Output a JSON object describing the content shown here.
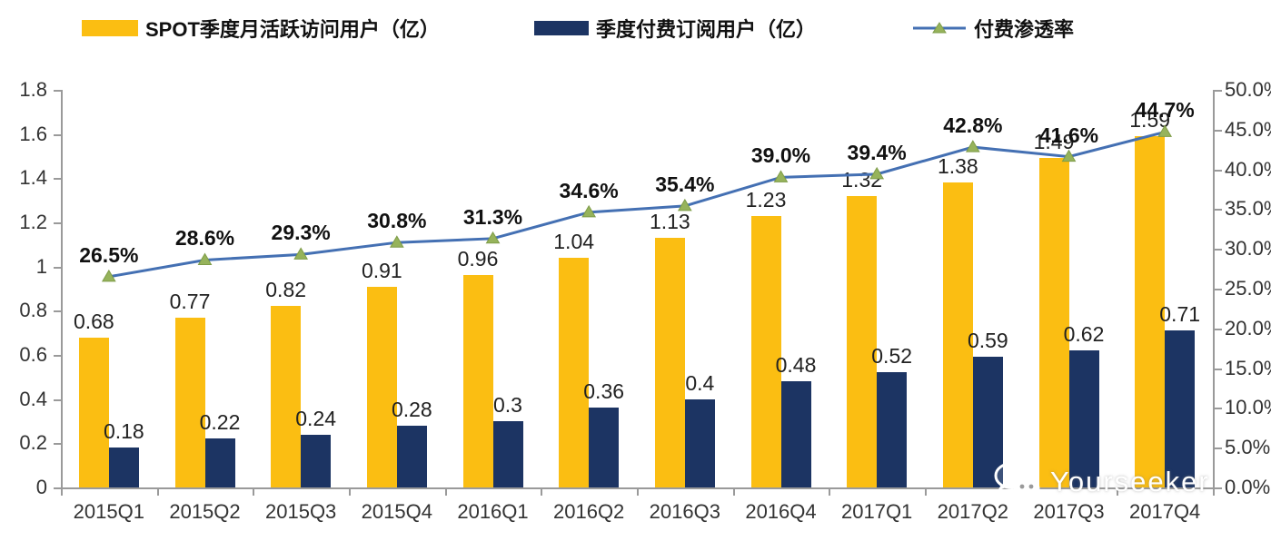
{
  "legend": [
    {
      "label": "SPOT季度月活跃访问用户（亿）",
      "type": "bar",
      "color": "#FBBE12"
    },
    {
      "label": "季度付费订阅用户（亿）",
      "type": "bar",
      "color": "#1C3463"
    },
    {
      "label": "付费渗透率",
      "type": "line",
      "color": "#4470B3",
      "marker_color": "#96B35B"
    }
  ],
  "chart_data": {
    "type": "bar",
    "subtype": "grouped bars with overlaid line (dual axis)",
    "categories": [
      "2015Q1",
      "2015Q2",
      "2015Q3",
      "2015Q4",
      "2016Q1",
      "2016Q2",
      "2016Q3",
      "2016Q4",
      "2017Q1",
      "2017Q2",
      "2017Q3",
      "2017Q4"
    ],
    "series": [
      {
        "name": "SPOT季度月活跃访问用户（亿）",
        "type": "bar",
        "axis": "left",
        "color": "#FBBE12",
        "values": [
          0.68,
          0.77,
          0.82,
          0.91,
          0.96,
          1.04,
          1.13,
          1.23,
          1.32,
          1.38,
          1.49,
          1.59
        ],
        "labels": [
          "0.68",
          "0.77",
          "0.82",
          "0.91",
          "0.96",
          "1.04",
          "1.13",
          "1.23",
          "1.32",
          "1.38",
          "1.49",
          "1.59"
        ]
      },
      {
        "name": "季度付费订阅用户（亿）",
        "type": "bar",
        "axis": "left",
        "color": "#1C3463",
        "values": [
          0.18,
          0.22,
          0.24,
          0.28,
          0.3,
          0.36,
          0.4,
          0.48,
          0.52,
          0.59,
          0.62,
          0.71
        ],
        "labels": [
          "0.18",
          "0.22",
          "0.24",
          "0.28",
          "0.3",
          "0.36",
          "0.4",
          "0.48",
          "0.52",
          "0.59",
          "0.62",
          "0.71"
        ]
      },
      {
        "name": "付费渗透率",
        "type": "line",
        "axis": "right",
        "color": "#4470B3",
        "marker": "triangle-up",
        "marker_color": "#96B35B",
        "values": [
          26.5,
          28.6,
          29.3,
          30.8,
          31.3,
          34.6,
          35.4,
          39.0,
          39.4,
          42.8,
          41.6,
          44.7
        ],
        "labels": [
          "26.5%",
          "28.6%",
          "29.3%",
          "30.8%",
          "31.3%",
          "34.6%",
          "35.4%",
          "39.0%",
          "39.4%",
          "42.8%",
          "41.6%",
          "44.7%"
        ]
      }
    ],
    "left_axis": {
      "min": 0,
      "max": 1.8,
      "tick_step": 0.2,
      "ticks": [
        "0",
        "0.2",
        "0.4",
        "0.6",
        "0.8",
        "1",
        "1.2",
        "1.4",
        "1.6",
        "1.8"
      ]
    },
    "right_axis": {
      "min": 0,
      "max": 50,
      "tick_step": 5,
      "ticks": [
        "0.0%",
        "5.0%",
        "10.0%",
        "15.0%",
        "20.0%",
        "25.0%",
        "30.0%",
        "35.0%",
        "40.0%",
        "45.0%",
        "50.0%"
      ]
    },
    "grid": false,
    "legend_position": "top"
  },
  "watermark": {
    "text": "Yourseeker",
    "icon": "wechat-icon"
  }
}
